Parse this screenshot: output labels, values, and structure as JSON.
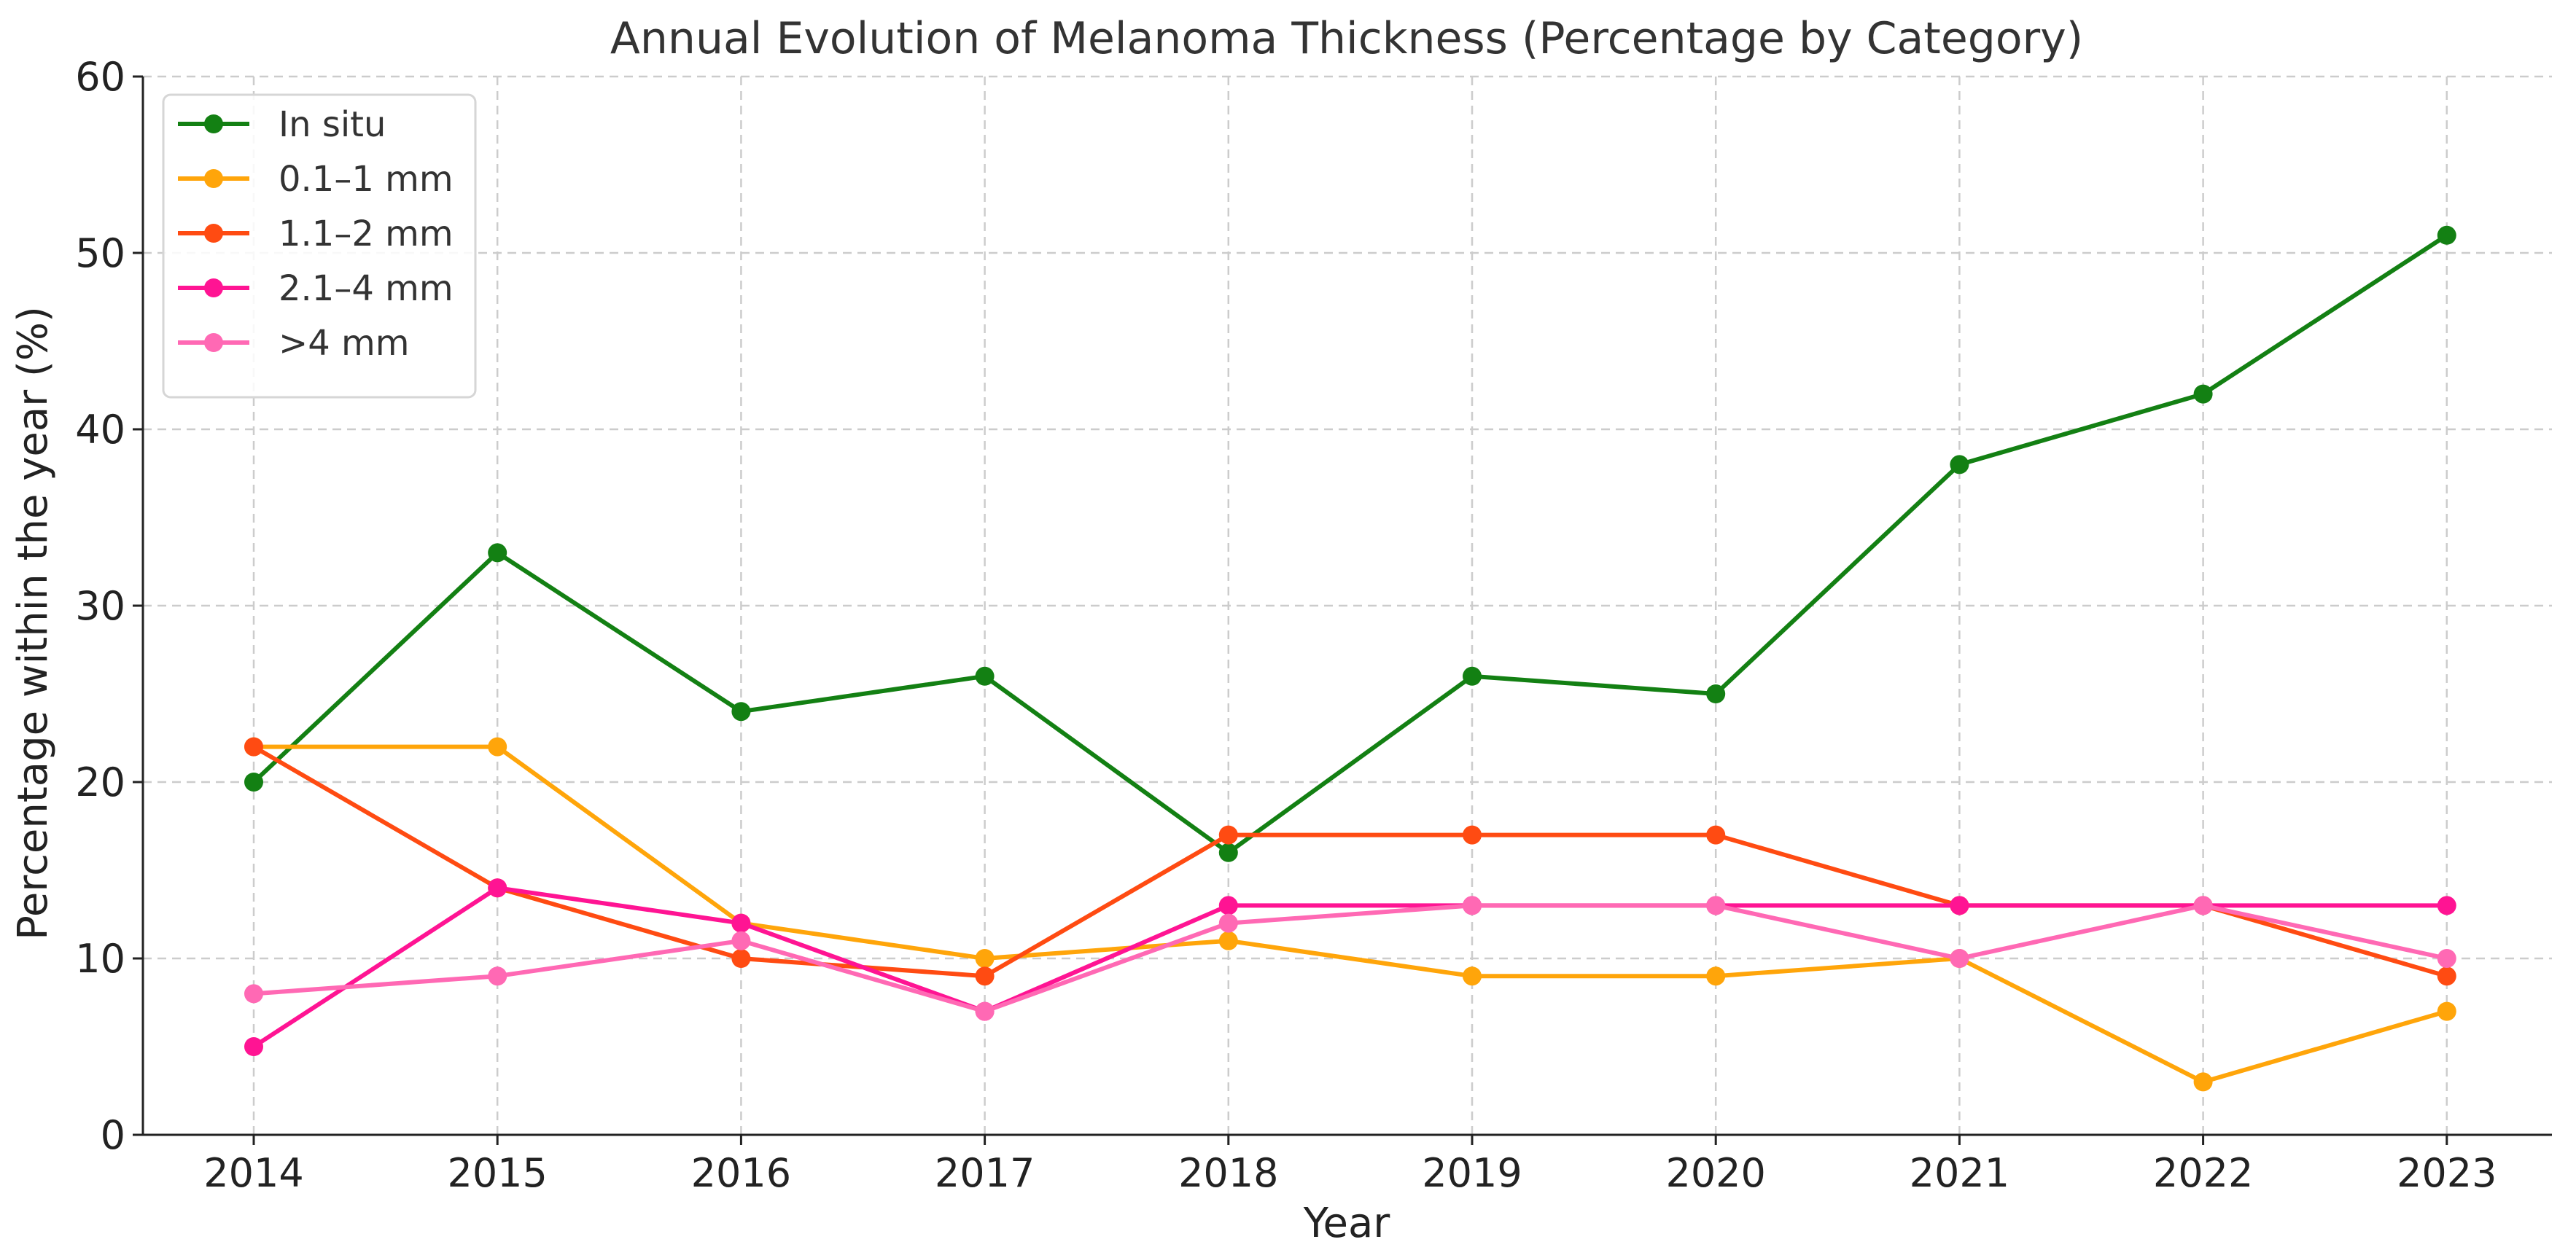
{
  "chart_data": {
    "type": "line",
    "title": "Annual Evolution of Melanoma Thickness (Percentage by Category)",
    "xlabel": "Year",
    "ylabel": "Percentage within the year (%)",
    "x": [
      "2014",
      "2015",
      "2016",
      "2017",
      "2018",
      "2019",
      "2020",
      "2021",
      "2022",
      "2023"
    ],
    "ylim": [
      0,
      60
    ],
    "yticks": [
      0,
      10,
      20,
      30,
      40,
      50,
      60
    ],
    "grid": true,
    "legend_position": "top-left",
    "series": [
      {
        "name": "In situ",
        "color": "#138013",
        "values": [
          20,
          33,
          24,
          26,
          16,
          26,
          25,
          38,
          42,
          51
        ]
      },
      {
        "name": "0.1–1 mm",
        "color": "#ffa50a",
        "values": [
          22,
          22,
          12,
          10,
          11,
          9,
          9,
          10,
          3,
          7
        ]
      },
      {
        "name": "1.1–2 mm",
        "color": "#ff4b12",
        "values": [
          22,
          14,
          10,
          9,
          17,
          17,
          17,
          13,
          13,
          9
        ]
      },
      {
        "name": "2.1–4 mm",
        "color": "#ff1493",
        "values": [
          5,
          14,
          12,
          7,
          13,
          13,
          13,
          13,
          13,
          13
        ]
      },
      {
        "name": ">4 mm",
        "color": "#ff69b4",
        "values": [
          8,
          9,
          11,
          7,
          12,
          13,
          13,
          10,
          13,
          10
        ]
      }
    ]
  }
}
